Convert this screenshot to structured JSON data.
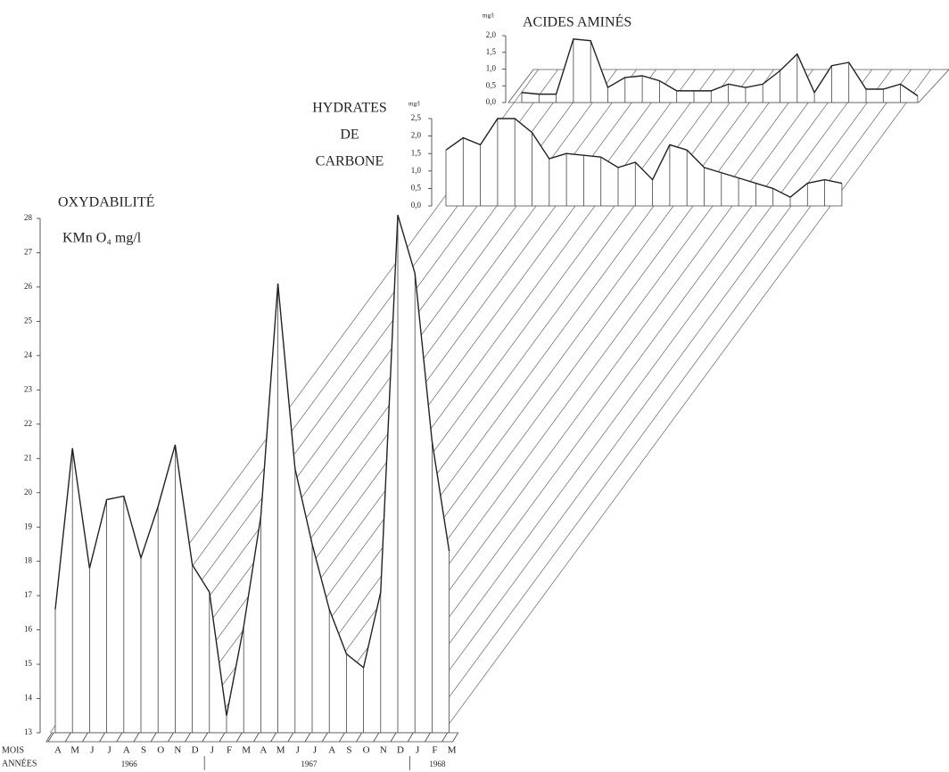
{
  "chart_data": [
    {
      "type": "line",
      "title": "OXYDABILITÉ",
      "y_label": "KMn O₄ mg/l",
      "x_label": "MOIS",
      "year_label": "ANNÉES",
      "categories": [
        "A",
        "M",
        "J",
        "J",
        "A",
        "S",
        "O",
        "N",
        "D",
        "J",
        "F",
        "M",
        "A",
        "M",
        "J",
        "J",
        "A",
        "S",
        "O",
        "N",
        "D",
        "J",
        "F",
        "M"
      ],
      "years": [
        {
          "label": "1966",
          "months": 9
        },
        {
          "label": "1967",
          "months": 12
        },
        {
          "label": "1968",
          "months": 3
        }
      ],
      "values": [
        16.6,
        21.3,
        17.8,
        19.8,
        19.9,
        18.1,
        19.6,
        21.4,
        17.9,
        17.1,
        13.5,
        16.1,
        19.3,
        26.1,
        20.7,
        18.5,
        16.6,
        15.3,
        14.9,
        17.1,
        28.1,
        26.4,
        21.5,
        18.3
      ],
      "ylim": [
        13,
        28
      ],
      "yticks": [
        13,
        14,
        15,
        16,
        17,
        18,
        19,
        20,
        21,
        22,
        23,
        24,
        25,
        26,
        27,
        28
      ],
      "color": "#222222"
    },
    {
      "type": "line",
      "title": [
        "HYDRATES",
        "DE",
        "CARBONE"
      ],
      "y_label": "mg/l",
      "values": [
        1.6,
        1.95,
        1.75,
        2.5,
        2.5,
        2.1,
        1.35,
        1.5,
        1.45,
        1.4,
        1.1,
        1.25,
        0.75,
        1.75,
        1.6,
        1.1,
        0.95,
        0.8,
        0.65,
        0.5,
        0.25,
        0.65,
        0.75,
        0.65
      ],
      "ylim": [
        0,
        2.5
      ],
      "yticks": [
        {
          "value": 0,
          "label": "0,0"
        },
        {
          "value": 0.5,
          "label": "0,5"
        },
        {
          "value": 1,
          "label": "1,0"
        },
        {
          "value": 1.5,
          "label": "1,5"
        },
        {
          "value": 2,
          "label": "2,0"
        },
        {
          "value": 2.5,
          "label": "2,5"
        }
      ],
      "color": "#222222"
    },
    {
      "type": "line",
      "title": "ACIDES AMINÉS",
      "y_label": "mg/l",
      "values": [
        0.3,
        0.25,
        0.25,
        1.9,
        1.85,
        0.45,
        0.75,
        0.8,
        0.65,
        0.35,
        0.35,
        0.35,
        0.55,
        0.45,
        0.55,
        0.95,
        1.45,
        0.3,
        1.1,
        1.2,
        0.4,
        0.4,
        0.55,
        0.2
      ],
      "ylim": [
        0,
        2
      ],
      "yticks": [
        {
          "value": 0,
          "label": "0,0"
        },
        {
          "value": 0.5,
          "label": "0,5"
        },
        {
          "value": 1,
          "label": "1,0"
        },
        {
          "value": 1.5,
          "label": "1,5"
        },
        {
          "value": 2,
          "label": "2,0"
        }
      ],
      "color": "#222222"
    }
  ]
}
